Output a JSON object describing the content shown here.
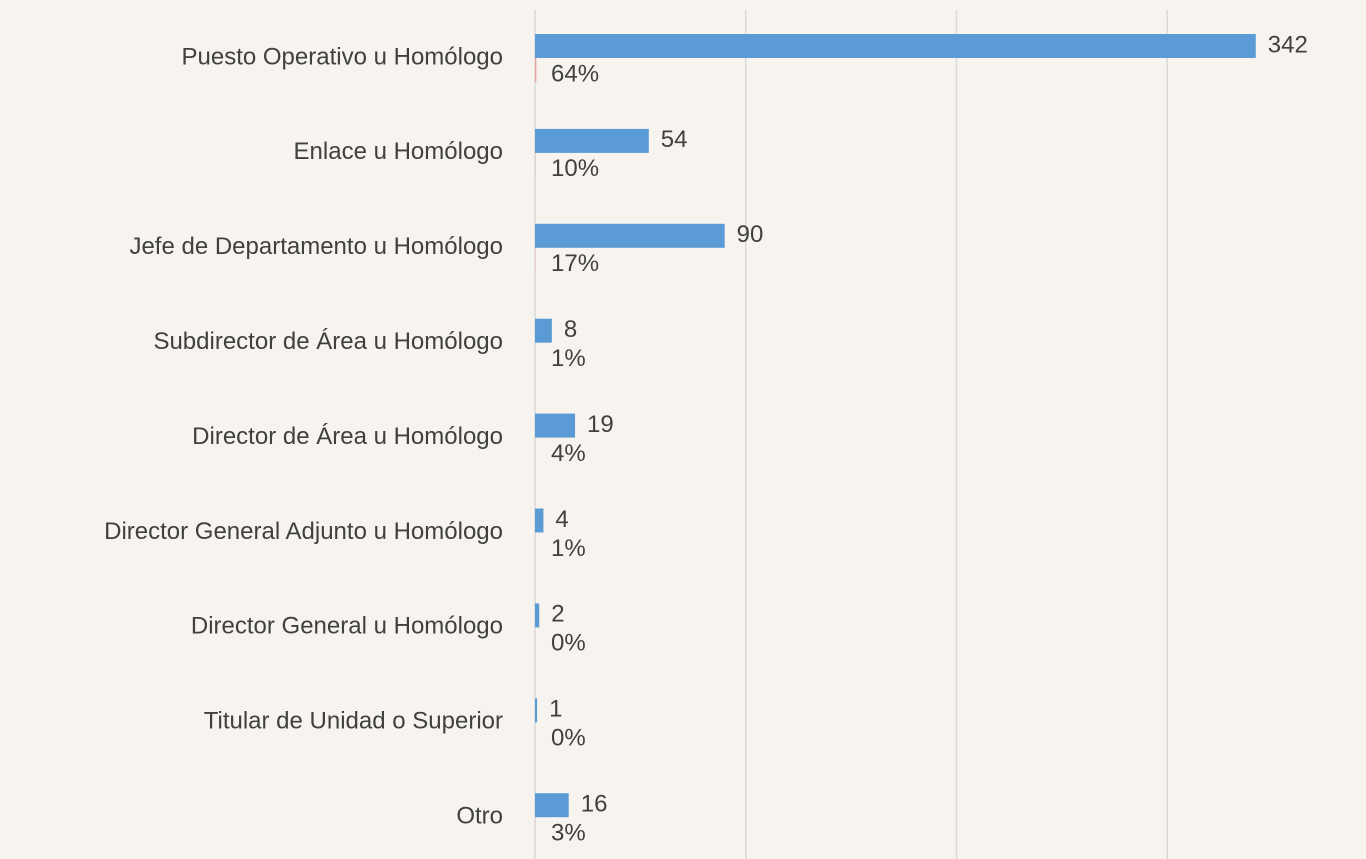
{
  "chart_data": {
    "type": "bar",
    "orientation": "horizontal",
    "categories": [
      "Puesto Operativo u Homólogo",
      "Enlace u Homólogo",
      "Jefe de Departamento u Homólogo",
      "Subdirector de Área u Homólogo",
      "Director de Área u Homólogo",
      "Director General Adjunto u Homólogo",
      "Director General u Homólogo",
      "Titular de Unidad o Superior",
      "Otro"
    ],
    "series": [
      {
        "color": "#5b9bd5",
        "values": [
          342,
          54,
          90,
          8,
          19,
          4,
          2,
          1,
          16
        ]
      },
      {
        "color": "#e8a3a0",
        "values": [
          0.64,
          0.1,
          0.17,
          0.01,
          0.04,
          0.01,
          0.0,
          0.0,
          0.03
        ],
        "value_labels": [
          "64%",
          "10%",
          "17%",
          "1%",
          "4%",
          "1%",
          "0%",
          "0%",
          "3%"
        ]
      }
    ],
    "xlim": [
      0,
      400
    ],
    "xticks": [
      0,
      100,
      200,
      300
    ],
    "grid": true
  }
}
